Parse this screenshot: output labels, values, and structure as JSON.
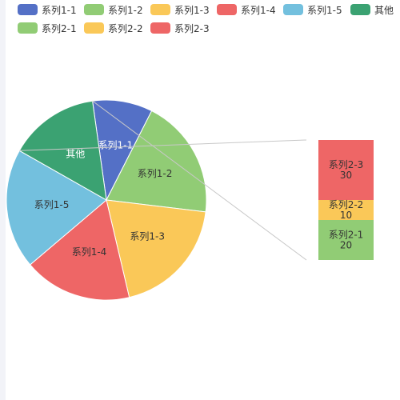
{
  "chart_data": {
    "type": "pie",
    "title": "",
    "legend_position": "top",
    "categories": [
      "系列1-1",
      "系列1-2",
      "系列1-3",
      "系列1-4",
      "系列1-5",
      "其他"
    ],
    "values": [
      10,
      20,
      20,
      18,
      20,
      15
    ],
    "colors": [
      "#5470c6",
      "#91cc75",
      "#fac858",
      "#ee6666",
      "#73c0de",
      "#3ba272"
    ],
    "label_colors": [
      "#ffffff",
      "#333333",
      "#333333",
      "#333333",
      "#333333",
      "#ffffff"
    ],
    "breakdown": {
      "of_category": "其他",
      "type": "stacked-bar",
      "categories": [
        "系列2-1",
        "系列2-2",
        "系列2-3"
      ],
      "values": [
        20,
        10,
        30
      ],
      "colors": [
        "#91cc75",
        "#fac858",
        "#ee6666"
      ]
    },
    "legend": [
      {
        "label": "系列1-1",
        "color": "#5470c6"
      },
      {
        "label": "系列1-2",
        "color": "#91cc75"
      },
      {
        "label": "系列1-3",
        "color": "#fac858"
      },
      {
        "label": "系列1-4",
        "color": "#ee6666"
      },
      {
        "label": "系列1-5",
        "color": "#73c0de"
      },
      {
        "label": "其他",
        "color": "#3ba272"
      },
      {
        "label": "系列2-1",
        "color": "#91cc75"
      },
      {
        "label": "系列2-2",
        "color": "#fac858"
      },
      {
        "label": "系列2-3",
        "color": "#ee6666"
      }
    ]
  }
}
